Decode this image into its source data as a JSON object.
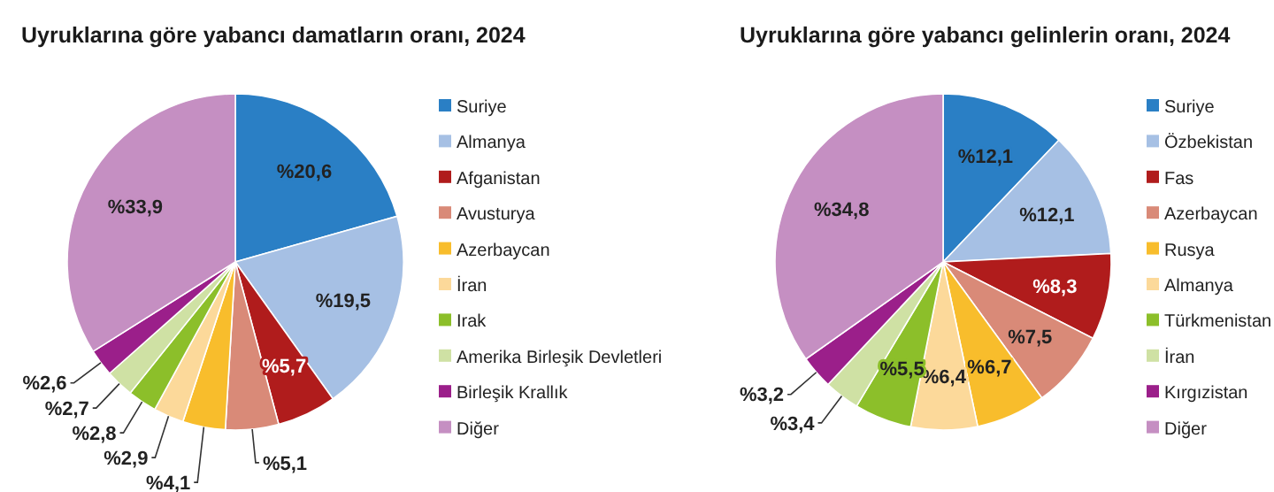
{
  "chart_data": [
    {
      "type": "pie",
      "title": "Uyruklarına göre yabancı damatların oranı, 2024",
      "categories": [
        "Suriye",
        "Almanya",
        "Afganistan",
        "Avusturya",
        "Azerbaycan",
        "İran",
        "Irak",
        "Amerika Birleşik Devletleri",
        "Birleşik Krallık",
        "Diğer"
      ],
      "values": [
        20.6,
        19.5,
        5.7,
        5.1,
        4.1,
        2.9,
        2.8,
        2.7,
        2.6,
        33.9
      ],
      "value_labels": [
        "%20,6",
        "%19,5",
        "%5,7",
        "%5,1",
        "%4,1",
        "%2,9",
        "%2,8",
        "%2,7",
        "%2,6",
        "%33,9"
      ],
      "colors": [
        "#2a7fc5",
        "#a6c0e4",
        "#b01c1c",
        "#d98a78",
        "#f8bd2c",
        "#fcd99a",
        "#8cbf2a",
        "#cfe1a4",
        "#9b1f8a",
        "#c58fc2"
      ],
      "legend": "right"
    },
    {
      "type": "pie",
      "title": "Uyruklarına göre yabancı gelinlerin oranı, 2024",
      "categories": [
        "Suriye",
        "Özbekistan",
        "Fas",
        "Azerbaycan",
        "Rusya",
        "Almanya",
        "Türkmenistan",
        "İran",
        "Kırgızistan",
        "Diğer"
      ],
      "values": [
        12.1,
        12.1,
        8.3,
        7.5,
        6.7,
        6.4,
        5.5,
        3.4,
        3.2,
        34.8
      ],
      "value_labels": [
        "%12,1",
        "%12,1",
        "%8,3",
        "%7,5",
        "%6,7",
        "%6,4",
        "%5,5",
        "%3,4",
        "%3,2",
        "%34,8"
      ],
      "colors": [
        "#2a7fc5",
        "#a6c0e4",
        "#b01c1c",
        "#d98a78",
        "#f8bd2c",
        "#fcd99a",
        "#8cbf2a",
        "#cfe1a4",
        "#9b1f8a",
        "#c58fc2"
      ],
      "legend": "right"
    }
  ]
}
